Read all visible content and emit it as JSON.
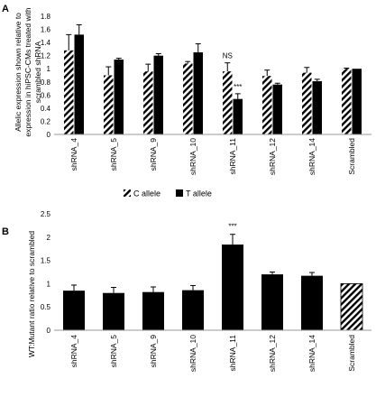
{
  "colors": {
    "c_allele": "#000000",
    "t_allele": "#000000",
    "bar": "#000000",
    "scrambled": "#000000",
    "axis": "#999999",
    "error": "#000000"
  },
  "chart_data": [
    {
      "panel_label": "A",
      "type": "bar",
      "ylabel": "Allelic expression shown relative to expression in hiPSC-CMs treated with scrambled shRNA",
      "ylabel_lines": [
        "Allelic expression shown relative to",
        "expression in hiPSC-CMs treated with",
        "scrambled shRNA"
      ],
      "ylim": [
        0,
        1.8
      ],
      "yticks": [
        "0",
        "0.2",
        "0.4",
        "0.6",
        "0.8",
        "1",
        "1.2",
        "1.4",
        "1.6",
        "1.8"
      ],
      "ytick_values": [
        0,
        0.2,
        0.4,
        0.6,
        0.8,
        1.0,
        1.2,
        1.4,
        1.6,
        1.8
      ],
      "categories": [
        "shRNA_4",
        "shRNA_5",
        "shRNA_9",
        "shRNA_10",
        "shRNA_11",
        "shRNA_12",
        "shRNA_14",
        "Scrambled"
      ],
      "series": [
        {
          "name": "C allele",
          "pattern": "hatched",
          "values": [
            1.28,
            0.9,
            0.96,
            1.08,
            0.96,
            0.89,
            0.94,
            1.0
          ],
          "errors": [
            0.24,
            0.13,
            0.11,
            0.03,
            0.13,
            0.09,
            0.08,
            0.01
          ]
        },
        {
          "name": "T allele",
          "pattern": "solid",
          "values": [
            1.52,
            1.14,
            1.2,
            1.25,
            0.54,
            0.76,
            0.81,
            1.0
          ],
          "errors": [
            0.15,
            0.02,
            0.03,
            0.13,
            0.08,
            0.02,
            0.03,
            0.0
          ]
        }
      ],
      "annotations": [
        {
          "category": "shRNA_11",
          "series": "C allele",
          "text": "NS"
        },
        {
          "category": "shRNA_11",
          "series": "T allele",
          "text": "***"
        }
      ],
      "legend_position": "bottom",
      "grid": false
    },
    {
      "panel_label": "B",
      "type": "bar",
      "ylabel": "WT:Mutant ratio relative to scrambled",
      "ylim": [
        0,
        2.5
      ],
      "yticks": [
        "0",
        "0.5",
        "1",
        "1.5",
        "2",
        "2.5"
      ],
      "ytick_values": [
        0,
        0.5,
        1.0,
        1.5,
        2.0,
        2.5
      ],
      "categories": [
        "shRNA_4",
        "shRNA_5",
        "shRNA_9",
        "shRNA_10",
        "shRNA_11",
        "shRNA_12",
        "shRNA_14",
        "Scrambled"
      ],
      "values": [
        0.85,
        0.8,
        0.82,
        0.86,
        1.84,
        1.2,
        1.17,
        1.0
      ],
      "errors": [
        0.12,
        0.12,
        0.11,
        0.1,
        0.22,
        0.05,
        0.07,
        0.0
      ],
      "patterns": [
        "solid",
        "solid",
        "solid",
        "solid",
        "solid",
        "solid",
        "solid",
        "hatched"
      ],
      "annotations": [
        {
          "category": "shRNA_11",
          "text": "***"
        }
      ],
      "grid": false
    }
  ]
}
